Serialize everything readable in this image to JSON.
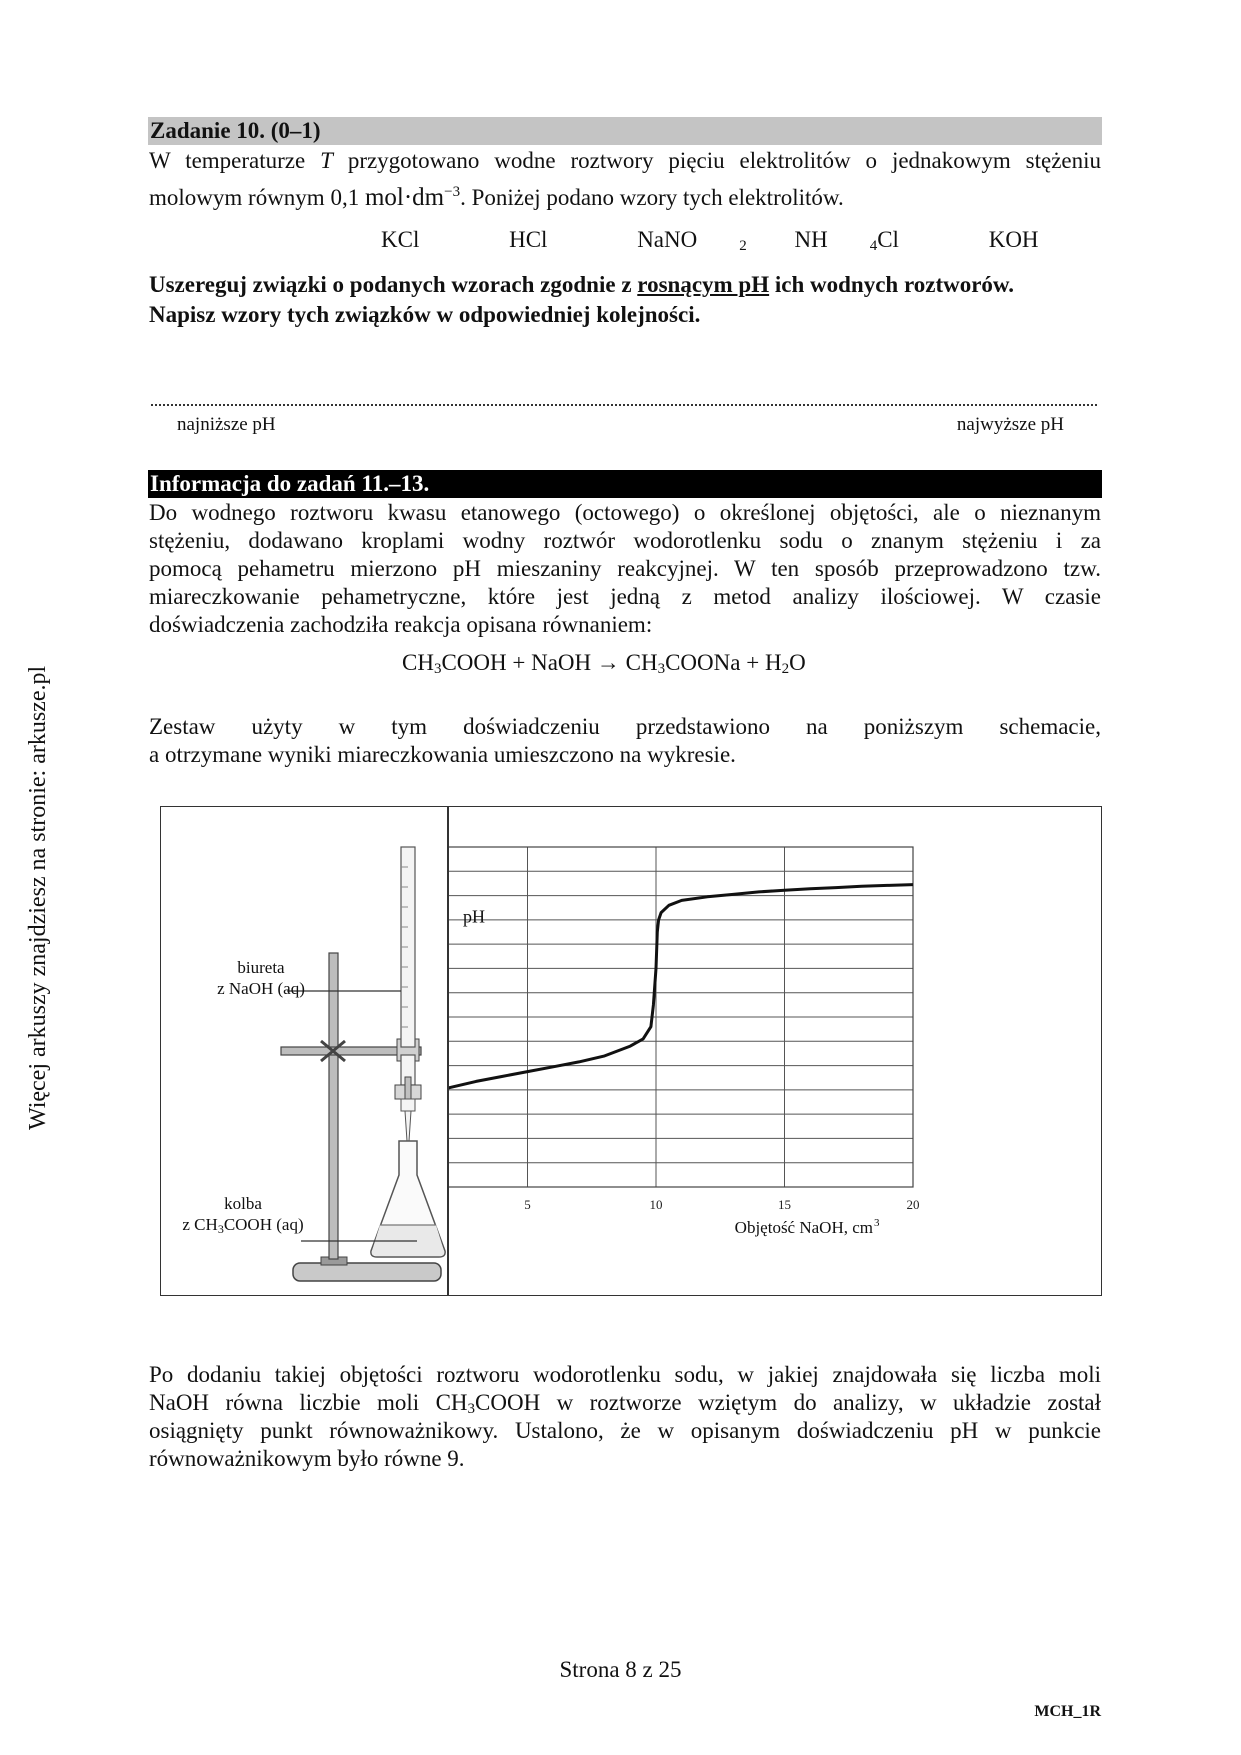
{
  "side_note": "Więcej arkuszy znajdziesz na stronie: arkusze.pl",
  "task10": {
    "heading": "Zadanie 10. (0–1)",
    "intro_line1_pre": "W temperaturze ",
    "intro_T": "T",
    "intro_line1_post": " przygotowano wodne roztwory pięciu elektrolitów o jednakowym stężeniu",
    "intro_line2_pre": "molowym równym 0,1 ",
    "unit": "mol·dm",
    "unit_exp": "−3",
    "intro_line2_post": ". Poniżej podano wzory tych elektrolitów.",
    "formulas": [
      {
        "main": "KCl",
        "sub": "",
        "tail": ""
      },
      {
        "main": "HCl",
        "sub": "",
        "tail": ""
      },
      {
        "main": "NaNO",
        "sub": "2",
        "tail": ""
      },
      {
        "main": "NH",
        "sub": "4",
        "tail": "Cl"
      },
      {
        "main": "KOH",
        "sub": "",
        "tail": ""
      }
    ],
    "instruction_pre": "Uszereguj związki o podanych wzorach zgodnie z ",
    "instruction_underlined": "rosnącym pH",
    "instruction_post": " ich wodnych roztworów.",
    "instruction_line2": "Napisz wzory tych związków w odpowiedniej kolejności.",
    "lowest_label": "najniższe pH",
    "highest_label": "najwyższe pH"
  },
  "info": {
    "heading": "Informacja do zadań 11.–13.",
    "paragraph_lines": [
      "Do wodnego roztworu kwasu etanowego (octowego) o określonej objętości, ale o nieznanym",
      "stężeniu, dodawano kroplami wodny roztwór wodorotlenku sodu o znanym stężeniu i za",
      "pomocą pehametru mierzono pH mieszaniny reakcyjnej. W ten sposób przeprowadzono tzw.",
      "miareczkowanie pehametryczne, które jest jedną z metod analizy ilościowej. W czasie",
      "doświadczenia zachodziła reakcja opisana równaniem:"
    ],
    "equation": {
      "a1": "CH",
      "a1s": "3",
      "a2": "COOH + NaOH → CH",
      "a2s": "3",
      "a3": "COONa + H",
      "a3s": "2",
      "a4": "O"
    },
    "paragraph2_line1": "Zestaw użyty w tym doświadczeniu przedstawiono na poniższym schemacie,",
    "paragraph2_line2": "a otrzymane wyniki miareczkowania umieszczono na wykresie."
  },
  "apparatus": {
    "burette_label_1": "biureta",
    "burette_label_2": "z NaOH (aq)",
    "flask_label_1": "kolba",
    "flask_label_2_pre": "z CH",
    "flask_label_2_sub": "3",
    "flask_label_2_post": "COOH (aq)"
  },
  "chart_data": {
    "type": "line",
    "ylabel": "pH",
    "xlabel": "Objętość NaOH, cm",
    "xlabel_sup": "3",
    "xlim": [
      0,
      20
    ],
    "ylim": [
      0,
      14
    ],
    "xticks": [
      "0",
      "5",
      "10",
      "15",
      "20"
    ],
    "yticks": [
      "0",
      "1",
      "2",
      "3",
      "4",
      "5",
      "6",
      "7",
      "8",
      "9",
      "10",
      "11",
      "12",
      "13",
      "14"
    ],
    "grid": true,
    "series": [
      {
        "x": [
          0,
          0.2,
          0.5,
          1,
          2,
          3,
          4,
          5,
          6,
          7,
          8,
          9,
          9.5,
          9.8,
          9.9,
          10,
          10.05,
          10.1,
          10.2,
          10.5,
          11,
          12,
          13,
          14,
          15,
          16,
          17,
          18,
          19,
          20
        ],
        "y": [
          2.9,
          3.1,
          3.5,
          3.8,
          4.1,
          4.35,
          4.55,
          4.75,
          4.95,
          5.15,
          5.4,
          5.8,
          6.1,
          6.6,
          7.5,
          9.0,
          10.5,
          11.0,
          11.3,
          11.6,
          11.8,
          11.95,
          12.05,
          12.15,
          12.22,
          12.28,
          12.33,
          12.38,
          12.42,
          12.45
        ]
      }
    ]
  },
  "para3_lines": [
    "Po dodaniu takiej objętości roztworu wodorotlenku sodu, w jakiej znajdowała się liczba moli",
    "NaOH równa liczbie moli CH",
    "3",
    "COOH w roztworze wziętym do analizy, w układzie został",
    "osiągnięty punkt równoważnikowy. Ustalono, że w opisanym doświadczeniu pH w punkcie",
    "równoważnikowym było równe 9."
  ],
  "footer": {
    "page": "Strona 8 z 25",
    "code": "MCH_1R"
  }
}
